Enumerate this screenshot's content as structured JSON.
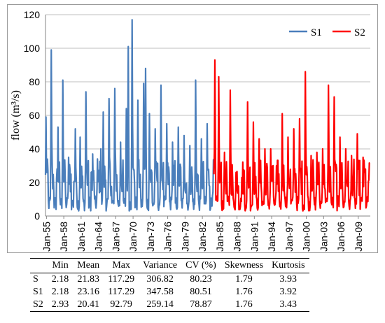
{
  "chart_data": {
    "type": "line",
    "title": "",
    "xlabel": "",
    "ylabel": "flow (m³/s)",
    "ylim": [
      0,
      120
    ],
    "yticks": [
      0,
      20,
      40,
      60,
      80,
      100,
      120
    ],
    "xticks": [
      "Jan-55",
      "Jan-58",
      "Jan-61",
      "Jan-64",
      "Jan-67",
      "Jan-70",
      "Jan-73",
      "Jan-76",
      "Jan-79",
      "Jan-82",
      "Jan-85",
      "Jan-88",
      "Jan-91",
      "Jan-94",
      "Jan-97",
      "Jan-00",
      "Jan-03",
      "Jan-06",
      "Jan-09"
    ],
    "legend_position": "top-right",
    "series": [
      {
        "name": "S1",
        "color": "#4a7ebb",
        "start": "1954-11",
        "end": "1984-01",
        "peaks": [
          {
            "date": "1954-12",
            "value": 59
          },
          {
            "date": "1955-11",
            "value": 99
          },
          {
            "date": "1957-01",
            "value": 53
          },
          {
            "date": "1957-11",
            "value": 81
          },
          {
            "date": "1958-11",
            "value": 35
          },
          {
            "date": "1960-01",
            "value": 52
          },
          {
            "date": "1960-11",
            "value": 47
          },
          {
            "date": "1961-11",
            "value": 74
          },
          {
            "date": "1963-01",
            "value": 37
          },
          {
            "date": "1963-11",
            "value": 34
          },
          {
            "date": "1964-06",
            "value": 40
          },
          {
            "date": "1964-11",
            "value": 62
          },
          {
            "date": "1965-11",
            "value": 70
          },
          {
            "date": "1966-11",
            "value": 76
          },
          {
            "date": "1967-11",
            "value": 44
          },
          {
            "date": "1968-11",
            "value": 64
          },
          {
            "date": "1969-03",
            "value": 101
          },
          {
            "date": "1969-11",
            "value": 117
          },
          {
            "date": "1970-11",
            "value": 69
          },
          {
            "date": "1971-11",
            "value": 79
          },
          {
            "date": "1972-03",
            "value": 88
          },
          {
            "date": "1972-11",
            "value": 61
          },
          {
            "date": "1973-11",
            "value": 52
          },
          {
            "date": "1974-11",
            "value": 78
          },
          {
            "date": "1975-11",
            "value": 55
          },
          {
            "date": "1976-11",
            "value": 44
          },
          {
            "date": "1977-11",
            "value": 53
          },
          {
            "date": "1978-11",
            "value": 48
          },
          {
            "date": "1979-11",
            "value": 42
          },
          {
            "date": "1980-11",
            "value": 81
          },
          {
            "date": "1981-11",
            "value": 46
          },
          {
            "date": "1982-11",
            "value": 55
          }
        ]
      },
      {
        "name": "S2",
        "color": "#ff0000",
        "start": "1984-01",
        "end": "2011-01",
        "peaks": [
          {
            "date": "1984-03",
            "value": 93
          },
          {
            "date": "1984-11",
            "value": 83
          },
          {
            "date": "1985-11",
            "value": 38
          },
          {
            "date": "1986-11",
            "value": 75
          },
          {
            "date": "1987-11",
            "value": 26
          },
          {
            "date": "1988-11",
            "value": 23
          },
          {
            "date": "1989-11",
            "value": 68
          },
          {
            "date": "1990-11",
            "value": 56
          },
          {
            "date": "1991-11",
            "value": 46
          },
          {
            "date": "1992-11",
            "value": 40
          },
          {
            "date": "1993-11",
            "value": 40
          },
          {
            "date": "1994-11",
            "value": 30
          },
          {
            "date": "1995-11",
            "value": 61
          },
          {
            "date": "1996-11",
            "value": 47
          },
          {
            "date": "1997-11",
            "value": 52
          },
          {
            "date": "1998-11",
            "value": 58
          },
          {
            "date": "1999-11",
            "value": 86
          },
          {
            "date": "2000-11",
            "value": 36
          },
          {
            "date": "2001-11",
            "value": 38
          },
          {
            "date": "2002-11",
            "value": 40
          },
          {
            "date": "2003-11",
            "value": 78
          },
          {
            "date": "2004-11",
            "value": 71
          },
          {
            "date": "2005-11",
            "value": 47
          },
          {
            "date": "2006-11",
            "value": 40
          },
          {
            "date": "2007-11",
            "value": 36
          },
          {
            "date": "2008-11",
            "value": 49
          },
          {
            "date": "2009-11",
            "value": 35
          }
        ]
      }
    ]
  },
  "stats_table": {
    "headers": [
      "",
      "Min",
      "Mean",
      "Max",
      "Variance",
      "CV (%)",
      "Skewness",
      "Kurtosis"
    ],
    "rows": [
      [
        "S",
        "2.18",
        "21.83",
        "117.29",
        "306.82",
        "80.23",
        "1.79",
        "3.93"
      ],
      [
        "S1",
        "2.18",
        "23.16",
        "117.29",
        "347.58",
        "80.51",
        "1.76",
        "3.92"
      ],
      [
        "S2",
        "2.93",
        "20.41",
        "92.79",
        "259.14",
        "78.87",
        "1.76",
        "3.43"
      ]
    ]
  }
}
